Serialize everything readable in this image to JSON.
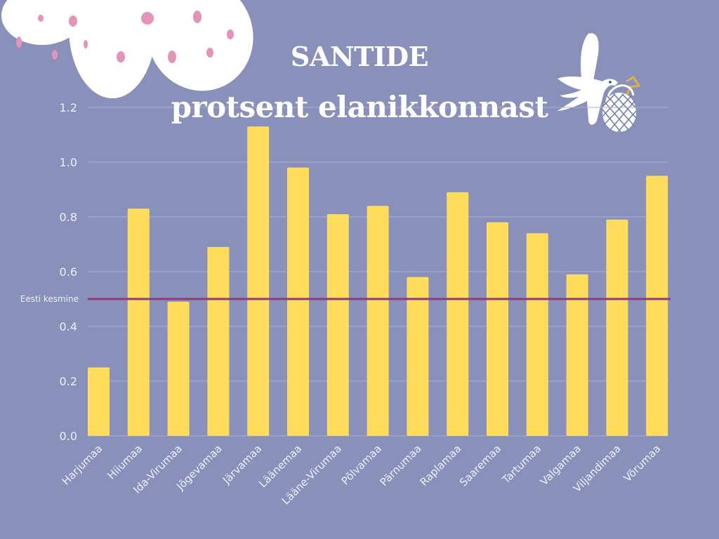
{
  "title": {
    "line1": "SANTIDE",
    "line2": "protsent elanikkonnast"
  },
  "colors": {
    "background": "#8990BA",
    "bar": "#FFDC5C",
    "average_line": "#8C3C7A",
    "gridline": "#A9AED6",
    "text": "#EEF0FA",
    "cloud": "#FFFFFF",
    "cloud_spots": "#E394B8"
  },
  "decorations": {
    "top_left": "cloud-with-pink-spots-icon",
    "top_right": "bird-carrying-basket-icon"
  },
  "chart_data": {
    "type": "bar",
    "title": "SANTIDE protsent elanikkonnast",
    "xlabel": "",
    "ylabel": "",
    "ylim": [
      0,
      1.2
    ],
    "yticks": [
      "0.0",
      "0.2",
      "0.4",
      "0.6",
      "0.8",
      "1.0",
      "1.2"
    ],
    "grid": true,
    "legend": null,
    "categories": [
      "Harjumaa",
      "Hiiumaa",
      "Ida-Virumaa",
      "Jõgevamaa",
      "Järvamaa",
      "Läänemaa",
      "Lääne-Virumaa",
      "Põlvamaa",
      "Pärnumaa",
      "Raplamaa",
      "Saaremaa",
      "Tartumaa",
      "Valgamaa",
      "Viljandimaa",
      "Võrumaa"
    ],
    "values": [
      0.25,
      0.83,
      0.49,
      0.69,
      1.13,
      0.98,
      0.81,
      0.84,
      0.58,
      0.89,
      0.78,
      0.74,
      0.59,
      0.79,
      0.95
    ],
    "annotations": [
      {
        "type": "hline",
        "y": 0.5,
        "label": "Eesti kesmine"
      }
    ]
  }
}
